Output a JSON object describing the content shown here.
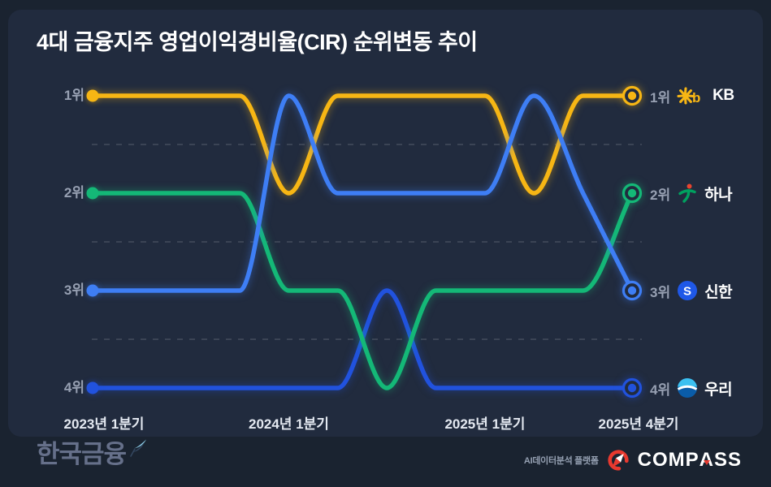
{
  "title": "4대 금융지주 영업이익경비율(CIR) 순위변동 추이",
  "chart_data": {
    "type": "line",
    "subtype": "bump-rank-chart",
    "n_points": 12,
    "rank_axis": [
      "1위",
      "2위",
      "3위",
      "4위"
    ],
    "x_tick_labels": [
      "2023년 1분기",
      "2024년 1분기",
      "2025년 1분기",
      "2025년 4분기"
    ],
    "x_tick_indices": [
      0,
      4,
      8,
      11
    ],
    "grid": "dashed lines between rank rows",
    "legend_position": "right of line endpoints",
    "series": [
      {
        "name": "KB",
        "end_rank_label": "1위",
        "color": "#F7B614",
        "logo": "kb",
        "ranks": [
          1,
          1,
          1,
          1,
          2,
          1,
          1,
          1,
          1,
          2,
          1,
          1
        ]
      },
      {
        "name": "하나",
        "end_rank_label": "2위",
        "color": "#14B877",
        "logo": "hana",
        "ranks": [
          2,
          2,
          2,
          2,
          3,
          3,
          4,
          3,
          3,
          3,
          3,
          2
        ]
      },
      {
        "name": "신한",
        "end_rank_label": "3위",
        "color": "#3E7EF5",
        "logo": "shinhan",
        "ranks": [
          3,
          3,
          3,
          3,
          1,
          2,
          2,
          2,
          2,
          1,
          2,
          3
        ]
      },
      {
        "name": "우리",
        "end_rank_label": "4위",
        "color": "#2152DE",
        "logo": "woori",
        "ranks": [
          4,
          4,
          4,
          4,
          4,
          4,
          3,
          4,
          4,
          4,
          4,
          4
        ]
      }
    ]
  },
  "colors": {
    "background": "#1A2330",
    "card": "#212B3E",
    "accent_red": "#E8392F",
    "muted_text": "#97A0B2",
    "axis_text": "#E4E9F1"
  },
  "footer": {
    "publisher": "한국금융",
    "platform_label": "AI데이터분석 플랫폼",
    "platform_name": "COMPASS"
  }
}
